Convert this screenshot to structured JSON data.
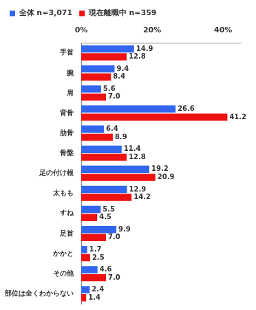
{
  "chart_data": {
    "type": "bar",
    "orientation": "horizontal",
    "categories": [
      "手首",
      "腕",
      "肩",
      "背骨",
      "肋骨",
      "骨盤",
      "足の付け根",
      "太もも",
      "すね",
      "足首",
      "かかと",
      "その他",
      "部位は全くわからない"
    ],
    "series": [
      {
        "name": "全体 n=3,071",
        "color": "#3366ee",
        "values": [
          14.9,
          9.4,
          5.6,
          26.6,
          6.4,
          11.4,
          19.2,
          12.9,
          5.5,
          9.9,
          1.7,
          4.6,
          2.4
        ],
        "value_labels": [
          "14.9",
          "9.4",
          "5.6",
          "26.6",
          "6.4",
          "11.4",
          "19.2",
          "12.9",
          "5.5",
          "9.9",
          "1.7",
          "4.6",
          "2.4"
        ]
      },
      {
        "name": "現在離職中 n=359",
        "color": "#ee1111",
        "values": [
          12.8,
          8.4,
          7.0,
          41.2,
          8.9,
          12.8,
          20.9,
          14.2,
          4.5,
          7.0,
          2.5,
          7.0,
          1.4
        ],
        "value_labels": [
          "12.8",
          "8.4",
          "7.0",
          "41.2",
          "8.9",
          "12.8",
          "20.9",
          "14.2",
          "4.5",
          "7.0",
          "2.5",
          "7.0",
          "1.4"
        ]
      }
    ],
    "xlim": [
      0,
      45
    ],
    "xticks": [
      {
        "value": 0,
        "label": "0%"
      },
      {
        "value": 20,
        "label": "20%"
      },
      {
        "value": 40,
        "label": "40%"
      }
    ],
    "grid": false,
    "legend": "top-left",
    "data_labels": true
  }
}
